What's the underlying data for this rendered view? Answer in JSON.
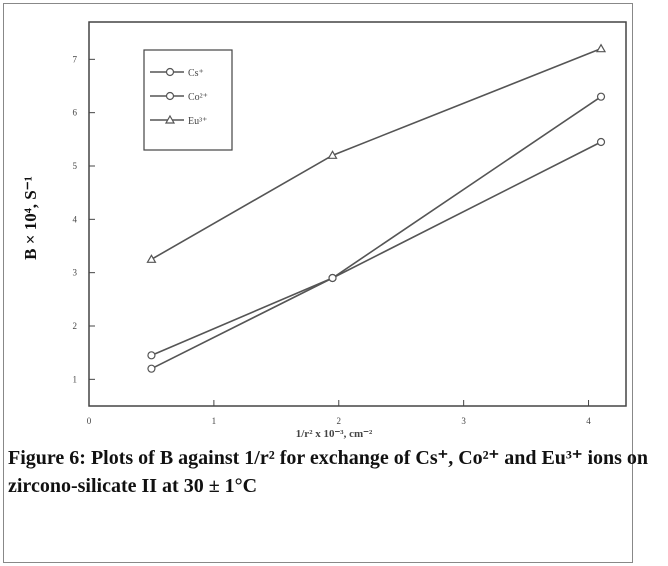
{
  "chart_data": {
    "type": "line",
    "xlabel": "1/r² x 10⁻³, cm⁻²",
    "ylabel": "B × 10⁴, S⁻¹",
    "caption": "Figure 6: Plots of B against 1/r² for exchange of Cs⁺, Co²⁺ and Eu³⁺ ions on zircono-silicate II at 30 ± 1°C",
    "x": [
      0.5,
      1.95,
      4.1
    ],
    "series": [
      {
        "name": "Cs⁺",
        "color": "#555555",
        "marker": "circle",
        "values": [
          1.45,
          2.9,
          5.45
        ]
      },
      {
        "name": "Co²⁺",
        "color": "#555555",
        "marker": "circle",
        "values": [
          1.2,
          2.9,
          6.3
        ]
      },
      {
        "name": "Eu³⁺",
        "color": "#555555",
        "marker": "triangle",
        "values": [
          3.25,
          5.2,
          7.2
        ]
      }
    ],
    "xlim": [
      0,
      4.3
    ],
    "ylim": [
      0.5,
      7.7
    ],
    "xticks": [
      0,
      1,
      2,
      3,
      4
    ],
    "yticks": [
      1,
      2,
      3,
      4,
      5,
      6,
      7
    ],
    "legend": "upper left"
  }
}
